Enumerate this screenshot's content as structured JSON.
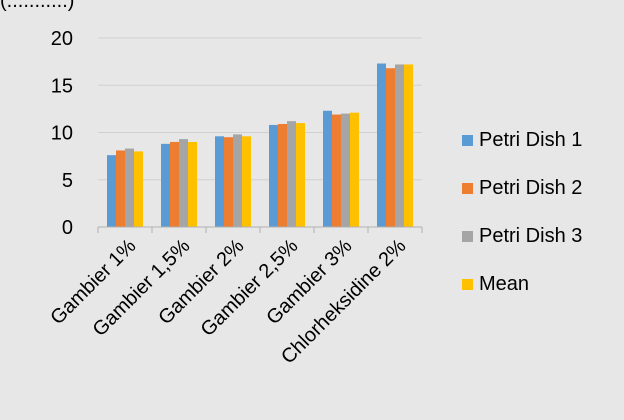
{
  "top_fragment": "(...........)",
  "chart_data": {
    "type": "bar",
    "categories": [
      "Gambier 1%",
      "Gambier 1,5%",
      "Gambier 2%",
      "Gambier 2,5%",
      "Gambier 3%",
      "Chlorheksidine 2%"
    ],
    "series": [
      {
        "name": "Petri Dish 1",
        "color": "#5b9bd5",
        "values": [
          7.6,
          8.8,
          9.6,
          10.8,
          12.3,
          17.3
        ]
      },
      {
        "name": "Petri Dish 2",
        "color": "#ed7d31",
        "values": [
          8.1,
          9.0,
          9.5,
          10.9,
          11.9,
          16.8
        ]
      },
      {
        "name": "Petri Dish 3",
        "color": "#a5a5a5",
        "values": [
          8.3,
          9.3,
          9.8,
          11.2,
          12.0,
          17.2
        ]
      },
      {
        "name": "Mean",
        "color": "#ffc000",
        "values": [
          8.0,
          9.0,
          9.6,
          11.0,
          12.1,
          17.2
        ]
      }
    ],
    "ylim": [
      0,
      20
    ],
    "yticks": [
      0,
      5,
      10,
      15,
      20
    ],
    "grid": true,
    "legend": "right"
  }
}
